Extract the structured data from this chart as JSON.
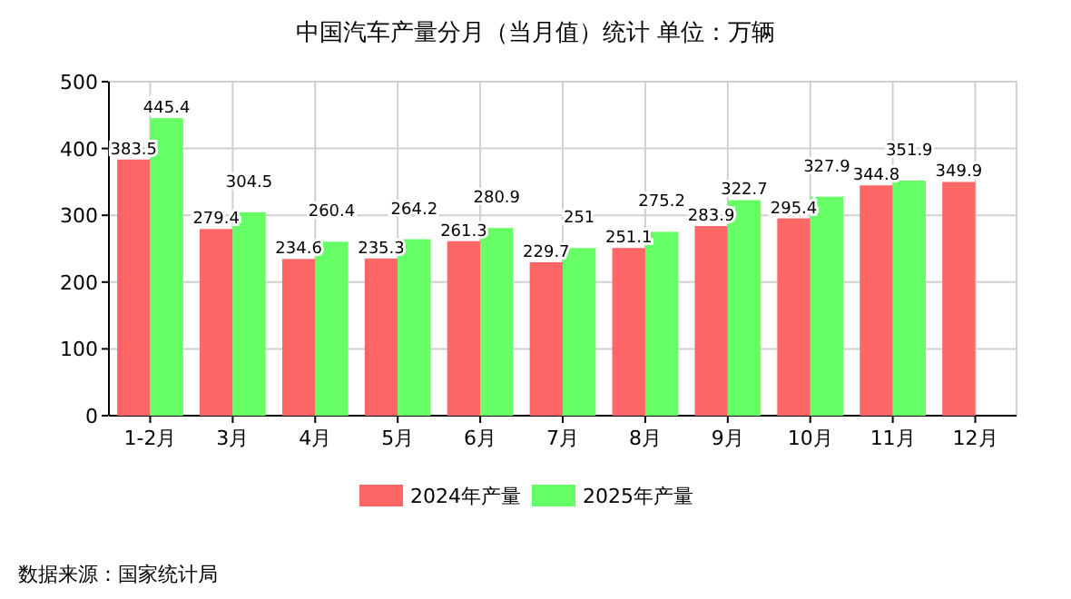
{
  "chart_data": {
    "type": "bar",
    "title": "中国汽车产量分月（当月值）统计 单位：万辆",
    "categories": [
      "1-2月",
      "3月",
      "4月",
      "5月",
      "6月",
      "7月",
      "8月",
      "9月",
      "10月",
      "11月",
      "12月"
    ],
    "series": [
      {
        "name": "2024年产量",
        "color": "#ff6666",
        "values": [
          383.5,
          279.4,
          234.6,
          235.3,
          261.3,
          229.7,
          251.1,
          283.9,
          295.4,
          344.8,
          349.9
        ]
      },
      {
        "name": "2025年产量",
        "color": "#66ff66",
        "values": [
          445.4,
          304.5,
          260.4,
          264.2,
          280.9,
          251,
          275.2,
          322.7,
          327.9,
          351.9,
          null
        ]
      }
    ],
    "ylim": [
      0,
      500
    ],
    "yticks": [
      0,
      100,
      200,
      300,
      400,
      500
    ],
    "grid": true,
    "legend": "bottom",
    "data_labels": true,
    "annotations": [
      "数据来源：国家统计局"
    ]
  }
}
